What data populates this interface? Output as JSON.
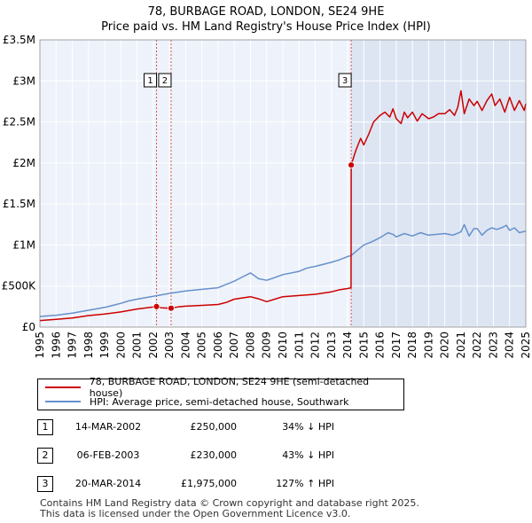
{
  "title": "78, BURBAGE ROAD, LONDON, SE24 9HE",
  "subtitle": "Price paid vs. HM Land Registry's House Price Index (HPI)",
  "legend": [
    {
      "label": "78, BURBAGE ROAD, LONDON, SE24 9HE (semi-detached house)",
      "color": "#cc0000"
    },
    {
      "label": "HPI: Average price, semi-detached house, Southwark",
      "color": "#6690cc"
    }
  ],
  "transactions": [
    {
      "num": "1",
      "date": "14-MAR-2002",
      "price": "£250,000",
      "hpi": "34% ↓ HPI"
    },
    {
      "num": "2",
      "date": "06-FEB-2003",
      "price": "£230,000",
      "hpi": "43% ↓ HPI"
    },
    {
      "num": "3",
      "date": "20-MAR-2014",
      "price": "£1,975,000",
      "hpi": "127% ↑ HPI"
    }
  ],
  "footer": [
    "Contains HM Land Registry data © Crown copyright and database right 2025.",
    "This data is licensed under the Open Government Licence v3.0."
  ],
  "chart_data": {
    "type": "line",
    "title": "78, BURBAGE ROAD, LONDON, SE24 9HE",
    "subtitle": "Price paid vs. HM Land Registry's House Price Index (HPI)",
    "xlim": [
      1995,
      2025
    ],
    "ylim": [
      0,
      3500000
    ],
    "y_ticks": [
      {
        "value": 0,
        "label": "£0"
      },
      {
        "value": 500000,
        "label": "£500K"
      },
      {
        "value": 1000000,
        "label": "£1M"
      },
      {
        "value": 1500000,
        "label": "£1.5M"
      },
      {
        "value": 2000000,
        "label": "£2M"
      },
      {
        "value": 2500000,
        "label": "£2.5M"
      },
      {
        "value": 3000000,
        "label": "£3M"
      },
      {
        "value": 3500000,
        "label": "£3.5M"
      }
    ],
    "x_ticks": [
      "1995",
      "1996",
      "1997",
      "1998",
      "1999",
      "2000",
      "2001",
      "2002",
      "2003",
      "2004",
      "2005",
      "2006",
      "2007",
      "2008",
      "2009",
      "2010",
      "2011",
      "2012",
      "2013",
      "2014",
      "2015",
      "2016",
      "2017",
      "2018",
      "2019",
      "2020",
      "2021",
      "2022",
      "2023",
      "2024",
      "2025"
    ],
    "grid": true,
    "background_color": "#eef2fa",
    "highlight_from": 2014.22,
    "series": [
      {
        "name": "78, BURBAGE ROAD, LONDON, SE24 9HE (semi-detached house)",
        "color": "#cc0000",
        "x": [
          1995.0,
          1996.0,
          1997.0,
          1998.0,
          1999.0,
          2000.0,
          2001.0,
          2002.2,
          2002.5,
          2003.1,
          2003.5,
          2004.0,
          2005.0,
          2006.0,
          2006.5,
          2007.0,
          2007.5,
          2008.0,
          2008.5,
          2009.0,
          2009.5,
          2010.0,
          2011.0,
          2012.0,
          2013.0,
          2013.5,
          2014.0,
          2014.21,
          2014.22,
          2014.5,
          2014.8,
          2015.0,
          2015.3,
          2015.6,
          2016.0,
          2016.3,
          2016.6,
          2016.8,
          2017.0,
          2017.3,
          2017.5,
          2017.7,
          2018.0,
          2018.3,
          2018.6,
          2019.0,
          2019.3,
          2019.6,
          2020.0,
          2020.3,
          2020.6,
          2020.8,
          2021.0,
          2021.2,
          2021.5,
          2021.8,
          2022.0,
          2022.3,
          2022.6,
          2022.9,
          2023.1,
          2023.4,
          2023.7,
          2024.0,
          2024.3,
          2024.6,
          2024.9,
          2025.0
        ],
        "y": [
          80000,
          95000,
          110000,
          140000,
          160000,
          185000,
          220000,
          250000,
          235000,
          230000,
          245000,
          255000,
          265000,
          275000,
          300000,
          340000,
          355000,
          370000,
          345000,
          310000,
          340000,
          370000,
          385000,
          400000,
          430000,
          455000,
          470000,
          480000,
          1975000,
          2150000,
          2300000,
          2220000,
          2350000,
          2500000,
          2580000,
          2620000,
          2560000,
          2660000,
          2540000,
          2480000,
          2620000,
          2550000,
          2620000,
          2510000,
          2600000,
          2540000,
          2560000,
          2600000,
          2600000,
          2650000,
          2580000,
          2680000,
          2880000,
          2600000,
          2780000,
          2700000,
          2750000,
          2640000,
          2760000,
          2840000,
          2700000,
          2780000,
          2620000,
          2800000,
          2640000,
          2760000,
          2640000,
          2720000
        ]
      },
      {
        "name": "HPI: Average price, semi-detached house, Southwark",
        "color": "#6690cc",
        "x": [
          1995.0,
          1996.0,
          1997.0,
          1998.0,
          1999.0,
          2000.0,
          2000.5,
          2001.0,
          2002.0,
          2003.0,
          2004.0,
          2005.0,
          2006.0,
          2007.0,
          2007.5,
          2008.0,
          2008.5,
          2009.0,
          2009.3,
          2010.0,
          2011.0,
          2011.5,
          2012.0,
          2013.0,
          2013.5,
          2014.0,
          2014.2,
          2014.5,
          2015.0,
          2015.5,
          2016.0,
          2016.5,
          2016.8,
          2017.0,
          2017.5,
          2018.0,
          2018.5,
          2019.0,
          2019.5,
          2020.0,
          2020.5,
          2021.0,
          2021.2,
          2021.5,
          2021.8,
          2022.0,
          2022.3,
          2022.6,
          2022.9,
          2023.2,
          2023.5,
          2023.8,
          2024.0,
          2024.3,
          2024.6,
          2025.0
        ],
        "y": [
          130000,
          145000,
          170000,
          205000,
          240000,
          290000,
          320000,
          340000,
          375000,
          410000,
          440000,
          460000,
          480000,
          560000,
          610000,
          660000,
          590000,
          570000,
          590000,
          640000,
          680000,
          720000,
          740000,
          790000,
          820000,
          860000,
          870000,
          920000,
          1000000,
          1040000,
          1090000,
          1150000,
          1130000,
          1100000,
          1140000,
          1110000,
          1150000,
          1120000,
          1130000,
          1140000,
          1120000,
          1160000,
          1250000,
          1110000,
          1200000,
          1200000,
          1120000,
          1180000,
          1210000,
          1190000,
          1210000,
          1240000,
          1180000,
          1210000,
          1150000,
          1170000
        ]
      }
    ],
    "markers": [
      {
        "label": "1",
        "x": 2002.2,
        "y": 250000
      },
      {
        "label": "2",
        "x": 2003.1,
        "y": 230000
      },
      {
        "label": "3",
        "x": 2014.22,
        "y": 1975000
      }
    ]
  }
}
